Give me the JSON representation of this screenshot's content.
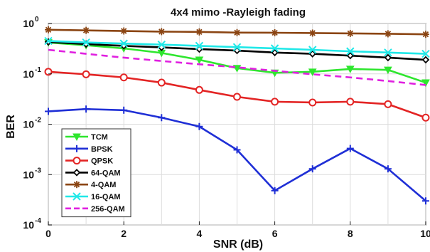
{
  "chart_data": {
    "type": "line",
    "title": "4x4 mimo -Rayleigh fading",
    "xlabel": "SNR (dB)",
    "ylabel": "BER",
    "xlim": [
      0,
      10
    ],
    "ylim": [
      0.0001,
      1
    ],
    "yscale": "log",
    "grid": true,
    "legend_position": "bottom-left",
    "x_ticks": [
      0,
      2,
      4,
      6,
      8,
      10
    ],
    "y_ticks": [
      {
        "value": 0.0001,
        "base": "10",
        "exp": "-4"
      },
      {
        "value": 0.001,
        "base": "10",
        "exp": "-3"
      },
      {
        "value": 0.01,
        "base": "10",
        "exp": "-2"
      },
      {
        "value": 0.1,
        "base": "10",
        "exp": "-1"
      },
      {
        "value": 1,
        "base": "10",
        "exp": "0"
      }
    ],
    "x": [
      0,
      1,
      2,
      3,
      4,
      5,
      6,
      7,
      8,
      9,
      10
    ],
    "series": [
      {
        "name": "TCM",
        "color": "#2ee62e",
        "marker": "triangle-down",
        "dash": "solid",
        "values": [
          0.42,
          0.37,
          0.32,
          0.26,
          0.19,
          0.13,
          0.105,
          0.11,
          0.125,
          0.12,
          0.067
        ]
      },
      {
        "name": "BPSK",
        "color": "#1f2fd6",
        "marker": "plus",
        "dash": "solid",
        "values": [
          0.018,
          0.02,
          0.019,
          0.0135,
          0.009,
          0.0031,
          0.00048,
          0.0013,
          0.0033,
          0.0013,
          0.0003
        ]
      },
      {
        "name": "QPSK",
        "color": "#e32424",
        "marker": "circle",
        "dash": "solid",
        "values": [
          0.11,
          0.098,
          0.085,
          0.067,
          0.048,
          0.035,
          0.028,
          0.027,
          0.028,
          0.025,
          0.0135
        ]
      },
      {
        "name": "64-QAM",
        "color": "#000000",
        "marker": "diamond",
        "dash": "solid",
        "values": [
          0.43,
          0.39,
          0.36,
          0.335,
          0.31,
          0.29,
          0.265,
          0.25,
          0.23,
          0.21,
          0.19
        ]
      },
      {
        "name": "4-QAM",
        "color": "#8b4513",
        "marker": "star",
        "dash": "solid",
        "values": [
          0.75,
          0.73,
          0.71,
          0.69,
          0.68,
          0.66,
          0.655,
          0.645,
          0.635,
          0.625,
          0.61
        ]
      },
      {
        "name": "16-QAM",
        "color": "#20e8e8",
        "marker": "cross",
        "dash": "solid",
        "values": [
          0.45,
          0.42,
          0.4,
          0.38,
          0.36,
          0.34,
          0.32,
          0.3,
          0.28,
          0.265,
          0.25
        ]
      },
      {
        "name": "256-QAM",
        "color": "#e020e0",
        "marker": "none",
        "dash": "dashed",
        "values": [
          0.3,
          0.25,
          0.21,
          0.18,
          0.155,
          0.135,
          0.115,
          0.098,
          0.085,
          0.072,
          0.06
        ]
      }
    ]
  }
}
